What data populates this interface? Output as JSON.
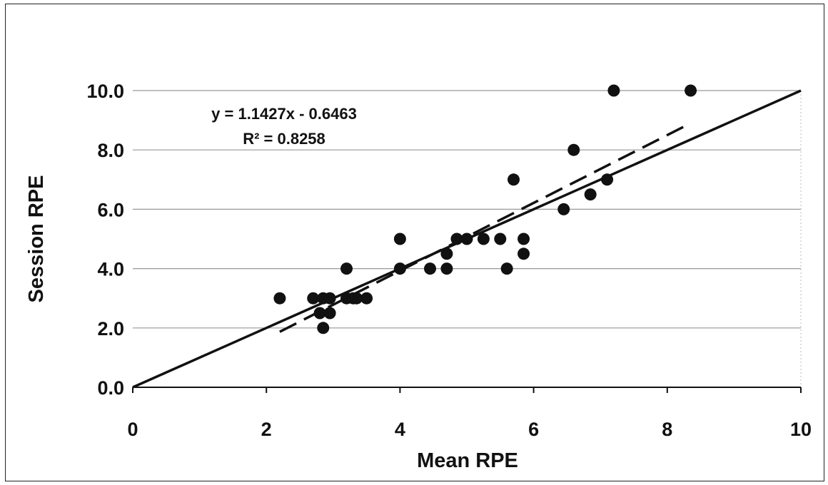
{
  "chart_data": {
    "type": "scatter",
    "title": "",
    "xlabel": "Mean RPE",
    "ylabel": "Session RPE",
    "xlim": [
      0,
      10
    ],
    "ylim": [
      0,
      10
    ],
    "x_ticks": [
      "0",
      "2",
      "4",
      "6",
      "8",
      "10"
    ],
    "y_ticks": [
      "0.0",
      "2.0",
      "4.0",
      "6.0",
      "8.0",
      "10.0"
    ],
    "grid": "horizontal",
    "legend": "none",
    "colors": {
      "points": "#111111",
      "lines": "#111111",
      "grid": "#999999"
    },
    "series": [
      {
        "type": "scatter",
        "points": [
          {
            "x": 2.2,
            "y": 3.0
          },
          {
            "x": 2.7,
            "y": 3.0
          },
          {
            "x": 2.8,
            "y": 2.5
          },
          {
            "x": 2.85,
            "y": 3.0
          },
          {
            "x": 2.85,
            "y": 2.0
          },
          {
            "x": 2.95,
            "y": 3.0
          },
          {
            "x": 2.95,
            "y": 2.5
          },
          {
            "x": 3.2,
            "y": 4.0
          },
          {
            "x": 3.2,
            "y": 3.0
          },
          {
            "x": 3.3,
            "y": 3.0
          },
          {
            "x": 3.35,
            "y": 3.0
          },
          {
            "x": 3.5,
            "y": 3.0
          },
          {
            "x": 4.0,
            "y": 5.0
          },
          {
            "x": 4.0,
            "y": 4.0
          },
          {
            "x": 4.45,
            "y": 4.0
          },
          {
            "x": 4.7,
            "y": 4.5
          },
          {
            "x": 4.7,
            "y": 4.0
          },
          {
            "x": 4.85,
            "y": 5.0
          },
          {
            "x": 5.0,
            "y": 5.0
          },
          {
            "x": 5.25,
            "y": 5.0
          },
          {
            "x": 5.5,
            "y": 5.0
          },
          {
            "x": 5.6,
            "y": 4.0
          },
          {
            "x": 5.7,
            "y": 7.0
          },
          {
            "x": 5.85,
            "y": 5.0
          },
          {
            "x": 5.85,
            "y": 4.5
          },
          {
            "x": 6.45,
            "y": 6.0
          },
          {
            "x": 6.6,
            "y": 8.0
          },
          {
            "x": 6.85,
            "y": 6.5
          },
          {
            "x": 7.1,
            "y": 7.0
          },
          {
            "x": 7.2,
            "y": 10.0
          },
          {
            "x": 8.35,
            "y": 10.0
          }
        ]
      },
      {
        "type": "line",
        "style": "solid",
        "points": [
          {
            "x": 0,
            "y": 0
          },
          {
            "x": 10,
            "y": 10
          }
        ]
      },
      {
        "type": "line",
        "style": "dashed",
        "points": [
          {
            "x": 2.2,
            "y": 1.87
          },
          {
            "x": 8.35,
            "y": 8.9
          }
        ]
      }
    ],
    "annotations": [
      "y = 1.1427x - 0.6463",
      "R² = 0.8258"
    ]
  }
}
